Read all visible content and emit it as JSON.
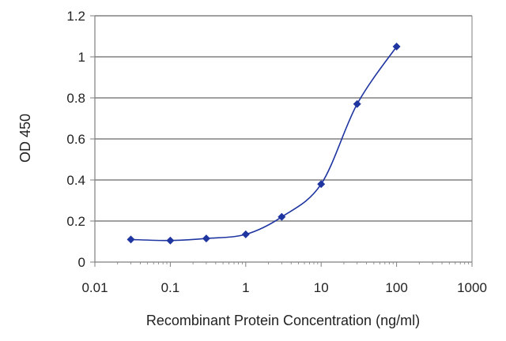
{
  "chart_data": {
    "type": "scatter",
    "title": "",
    "xlabel": "Recombinant Protein Concentration (ng/ml)",
    "ylabel": "OD 450",
    "x_scale": "log",
    "xlim": [
      0.01,
      1000
    ],
    "ylim": [
      0,
      1.2
    ],
    "x_tick_labels": [
      "0.01",
      "0.1",
      "1",
      "10",
      "100",
      "1000"
    ],
    "x_ticks": [
      0.01,
      0.1,
      1,
      10,
      100,
      1000
    ],
    "y_tick_labels": [
      "0",
      "0.2",
      "0.4",
      "0.6",
      "0.8",
      "1",
      "1.2"
    ],
    "y_ticks": [
      0,
      0.2,
      0.4,
      0.6,
      0.8,
      1,
      1.2
    ],
    "grid": "horizontal",
    "line_style": "smooth line with diamond markers",
    "series": [
      {
        "x": [
          0.03,
          0.1,
          0.3,
          1,
          3,
          10,
          30,
          100
        ],
        "y": [
          0.11,
          0.105,
          0.115,
          0.135,
          0.22,
          0.38,
          0.77,
          1.05
        ]
      }
    ],
    "colors": {
      "series": "#1f35a0",
      "grid": "#808080",
      "axis": "#7f7f7f",
      "background": "#ffffff"
    }
  }
}
